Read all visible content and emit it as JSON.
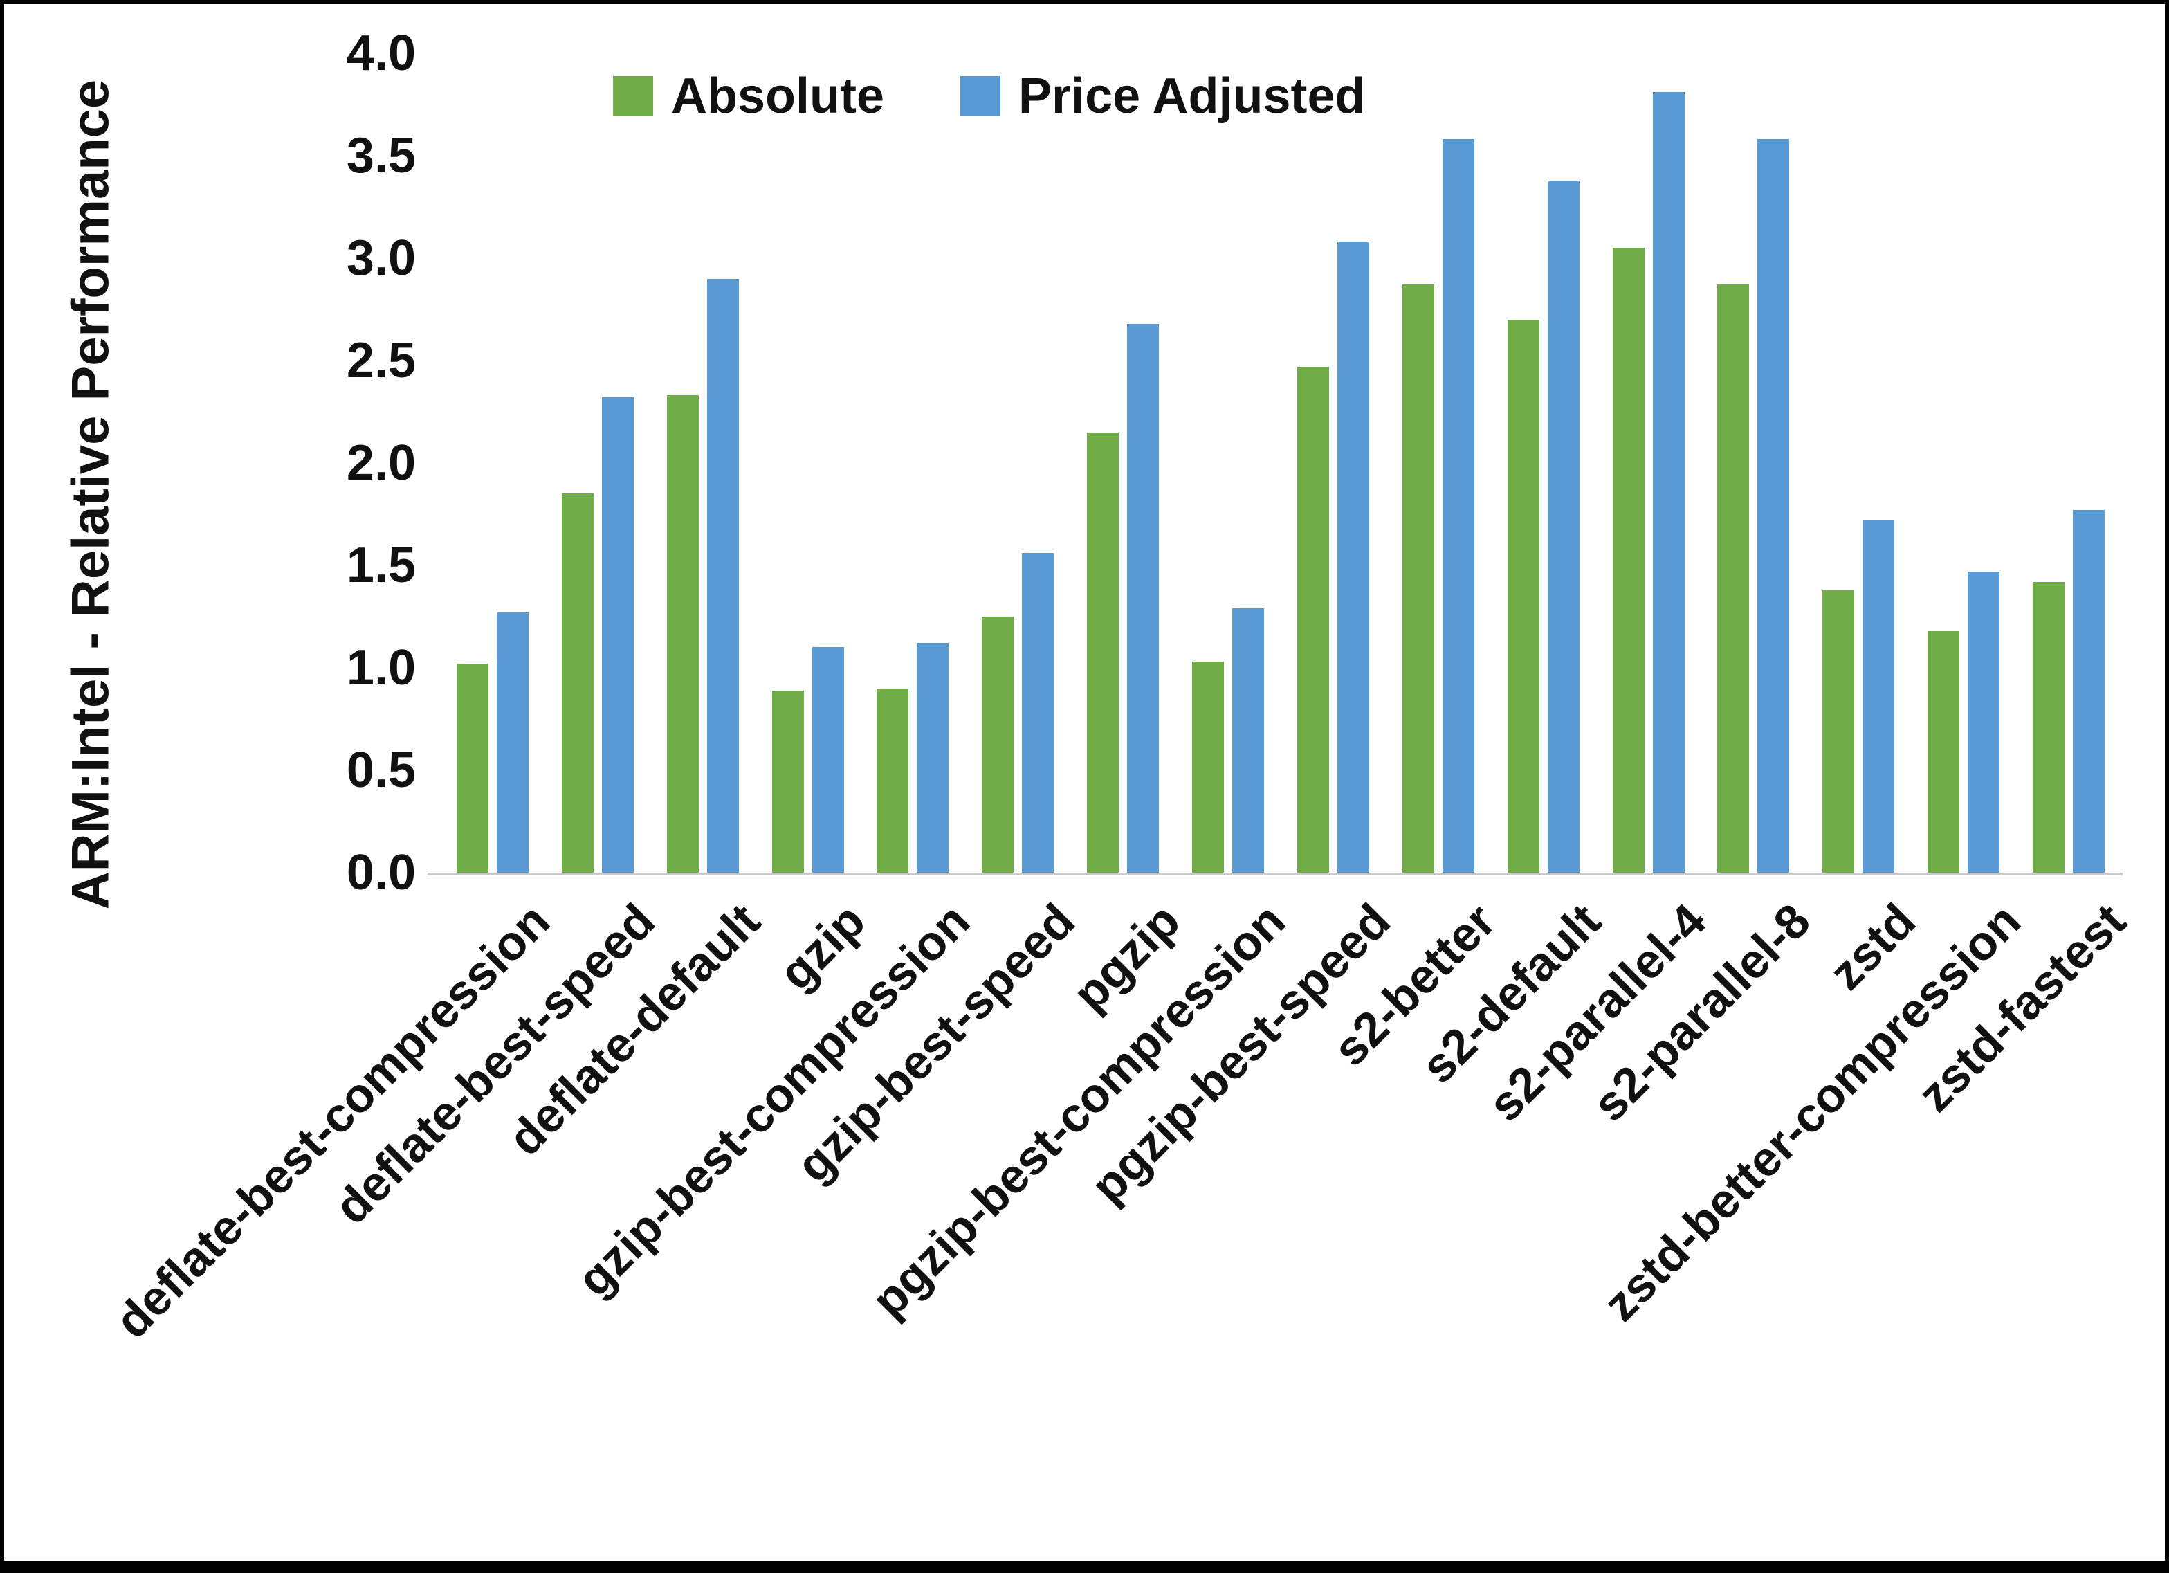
{
  "chart_data": {
    "type": "bar",
    "title": "",
    "ylabel": "ARM:Intel - Relative Performance",
    "xlabel": "",
    "ylim": [
      0,
      4
    ],
    "ytick_step": 0.5,
    "grid": false,
    "legend_position": "top-center",
    "categories": [
      "deflate-best-compression",
      "deflate-best-speed",
      "deflate-default",
      "gzip",
      "gzip-best-compression",
      "gzip-best-speed",
      "pgzip",
      "pgzip-best-compression",
      "pgzip-best-speed",
      "s2-better",
      "s2-default",
      "s2-parallel-4",
      "s2-parallel-8",
      "zstd",
      "zstd-better-compression",
      "zstd-fastest"
    ],
    "series": [
      {
        "name": "Absolute",
        "color": "#70AD47",
        "values": [
          1.02,
          1.85,
          2.33,
          0.89,
          0.9,
          1.25,
          2.15,
          1.03,
          2.47,
          2.87,
          2.7,
          3.05,
          2.87,
          1.38,
          1.18,
          1.42
        ]
      },
      {
        "name": "Price Adjusted",
        "color": "#5B9BD5",
        "values": [
          1.27,
          2.32,
          2.9,
          1.1,
          1.12,
          1.56,
          2.68,
          1.29,
          3.08,
          3.58,
          3.38,
          3.81,
          3.58,
          1.72,
          1.47,
          1.77
        ]
      }
    ]
  },
  "axis_colors": {
    "axis_line": "#c9c9c9",
    "text": "#111111"
  }
}
